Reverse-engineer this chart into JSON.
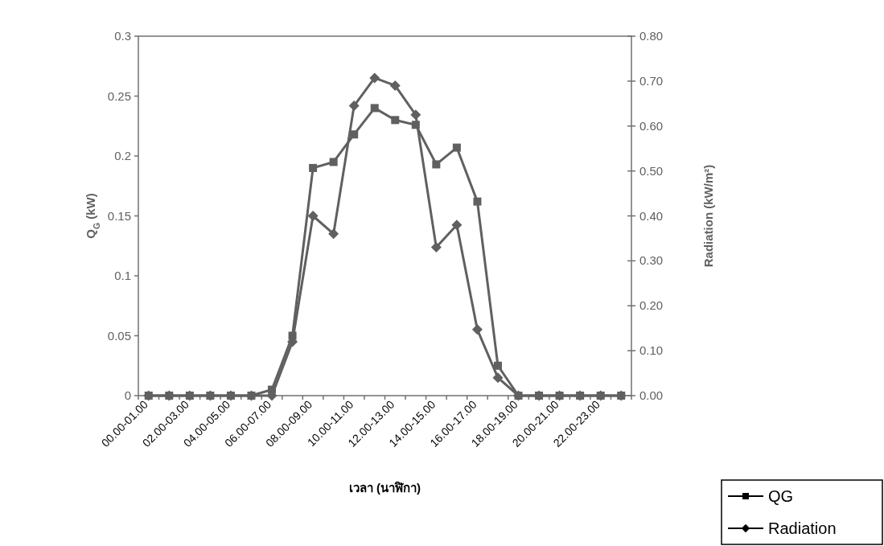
{
  "chart_data": {
    "type": "line",
    "xlabel": "เวลา (นาฬิกา)",
    "ylabel": "Q$_{G}$ (kW)",
    "y2label": "Radiation (kW/m²)",
    "categories": [
      "00.00-01.00",
      null,
      "02.00-03.00",
      null,
      "04.00-05.00",
      null,
      "06.00-07.00",
      null,
      "08.00-09.00",
      null,
      "10.00-11.00",
      null,
      "12.00-13.00",
      null,
      "14.00-15.00",
      null,
      "16.00-17.00",
      null,
      "18.00-19.00",
      null,
      "20.00-21.00",
      null,
      "22.00-23.00",
      null
    ],
    "series": [
      {
        "name": "QG",
        "color": "#606060",
        "marker": "square",
        "values": [
          0,
          0,
          0,
          0,
          0,
          0,
          0.005,
          0.05,
          0.19,
          0.195,
          0.218,
          0.24,
          0.23,
          0.226,
          0.193,
          0.207,
          0.162,
          0.025,
          0,
          0,
          0,
          0,
          0,
          0
        ]
      },
      {
        "name": "Radiation",
        "color": "#606060",
        "marker": "diamond",
        "axis": "y2",
        "values": [
          0,
          0,
          0,
          0,
          0,
          0,
          0,
          0.12,
          0.4,
          0.36,
          0.645,
          0.707,
          0.69,
          0.625,
          0.33,
          0.38,
          0.147,
          0.04,
          0,
          0,
          0,
          0,
          0,
          0
        ]
      }
    ],
    "ylim": [
      0,
      0.3
    ],
    "yticks": [
      0,
      0.05,
      0.1,
      0.15,
      0.2,
      0.25,
      0.3
    ],
    "y2lim": [
      0,
      0.8
    ],
    "y2ticks": [
      {
        "value": 0,
        "label": "0.00"
      },
      {
        "value": 0.1,
        "label": "0.10"
      },
      {
        "value": 0.2,
        "label": "0.20"
      },
      {
        "value": 0.3,
        "label": "0.30"
      },
      {
        "value": 0.4,
        "label": "0.40"
      },
      {
        "value": 0.5,
        "label": "0.50"
      },
      {
        "value": 0.6,
        "label": "0.60"
      },
      {
        "value": 0.7,
        "label": "0.70"
      },
      {
        "value": 0.8,
        "label": "0.80"
      }
    ],
    "grid": false,
    "legend": "bottom right",
    "line_style": "solid"
  }
}
